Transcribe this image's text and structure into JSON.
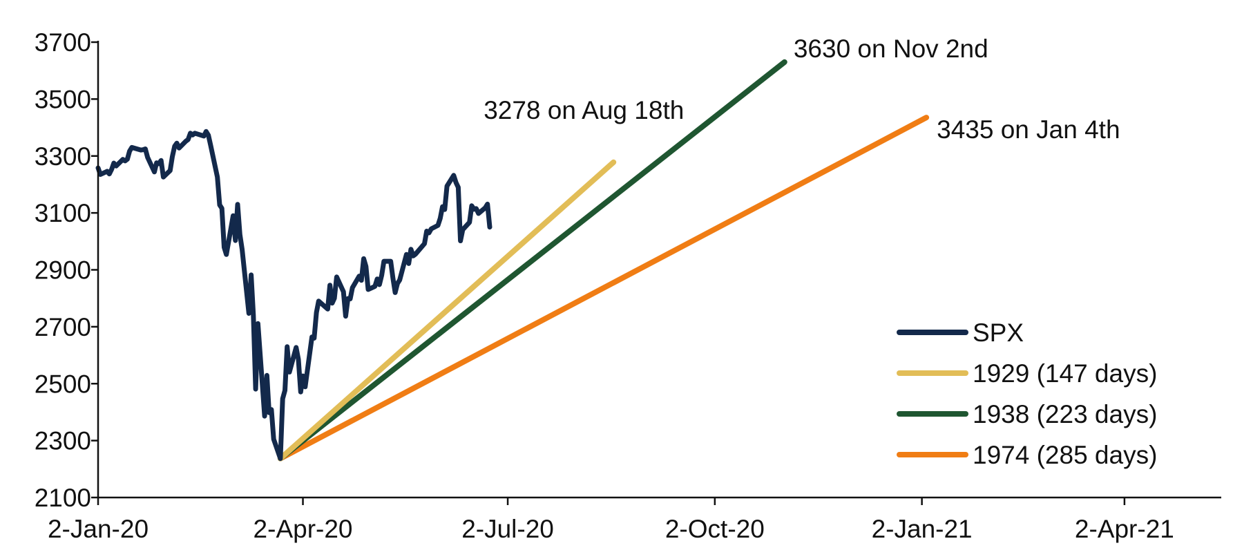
{
  "chart_data": {
    "type": "line",
    "title": "",
    "xlabel": "",
    "ylabel": "",
    "ylim": [
      2100,
      3700
    ],
    "xlim": [
      "2020-01-02",
      "2021-05-15"
    ],
    "y_ticks": [
      3700,
      3500,
      3300,
      3100,
      2900,
      2700,
      2500,
      2300,
      2100
    ],
    "x_ticks": [
      {
        "date": "2020-01-02",
        "label": "2-Jan-20"
      },
      {
        "date": "2020-04-02",
        "label": "2-Apr-20"
      },
      {
        "date": "2020-07-02",
        "label": "2-Jul-20"
      },
      {
        "date": "2020-10-02",
        "label": "2-Oct-20"
      },
      {
        "date": "2021-01-02",
        "label": "2-Jan-21"
      },
      {
        "date": "2021-04-02",
        "label": "2-Apr-21"
      }
    ],
    "grid": false,
    "legend_position": "bottom-right",
    "series": [
      {
        "name": "SPX",
        "color": "#13294b",
        "points": [
          [
            "2020-01-02",
            3258
          ],
          [
            "2020-01-03",
            3235
          ],
          [
            "2020-01-06",
            3246
          ],
          [
            "2020-01-07",
            3237
          ],
          [
            "2020-01-08",
            3253
          ],
          [
            "2020-01-09",
            3275
          ],
          [
            "2020-01-10",
            3265
          ],
          [
            "2020-01-13",
            3288
          ],
          [
            "2020-01-14",
            3283
          ],
          [
            "2020-01-15",
            3289
          ],
          [
            "2020-01-16",
            3317
          ],
          [
            "2020-01-17",
            3330
          ],
          [
            "2020-01-21",
            3321
          ],
          [
            "2020-01-22",
            3322
          ],
          [
            "2020-01-23",
            3325
          ],
          [
            "2020-01-24",
            3295
          ],
          [
            "2020-01-27",
            3244
          ],
          [
            "2020-01-28",
            3276
          ],
          [
            "2020-01-29",
            3273
          ],
          [
            "2020-01-30",
            3284
          ],
          [
            "2020-01-31",
            3226
          ],
          [
            "2020-02-03",
            3249
          ],
          [
            "2020-02-04",
            3298
          ],
          [
            "2020-02-05",
            3334
          ],
          [
            "2020-02-06",
            3345
          ],
          [
            "2020-02-07",
            3328
          ],
          [
            "2020-02-10",
            3352
          ],
          [
            "2020-02-11",
            3358
          ],
          [
            "2020-02-12",
            3380
          ],
          [
            "2020-02-13",
            3374
          ],
          [
            "2020-02-14",
            3380
          ],
          [
            "2020-02-18",
            3370
          ],
          [
            "2020-02-19",
            3386
          ],
          [
            "2020-02-20",
            3373
          ],
          [
            "2020-02-21",
            3338
          ],
          [
            "2020-02-24",
            3226
          ],
          [
            "2020-02-25",
            3128
          ],
          [
            "2020-02-26",
            3116
          ],
          [
            "2020-02-27",
            2979
          ],
          [
            "2020-02-28",
            2954
          ],
          [
            "2020-03-02",
            3090
          ],
          [
            "2020-03-03",
            3003
          ],
          [
            "2020-03-04",
            3130
          ],
          [
            "2020-03-05",
            3024
          ],
          [
            "2020-03-06",
            2972
          ],
          [
            "2020-03-09",
            2747
          ],
          [
            "2020-03-10",
            2882
          ],
          [
            "2020-03-11",
            2741
          ],
          [
            "2020-03-12",
            2481
          ],
          [
            "2020-03-13",
            2711
          ],
          [
            "2020-03-16",
            2386
          ],
          [
            "2020-03-17",
            2529
          ],
          [
            "2020-03-18",
            2398
          ],
          [
            "2020-03-19",
            2409
          ],
          [
            "2020-03-20",
            2305
          ],
          [
            "2020-03-23",
            2237
          ],
          [
            "2020-03-24",
            2447
          ],
          [
            "2020-03-25",
            2476
          ],
          [
            "2020-03-26",
            2630
          ],
          [
            "2020-03-27",
            2541
          ],
          [
            "2020-03-30",
            2627
          ],
          [
            "2020-03-31",
            2585
          ],
          [
            "2020-04-01",
            2471
          ],
          [
            "2020-04-02",
            2527
          ],
          [
            "2020-04-03",
            2489
          ],
          [
            "2020-04-06",
            2664
          ],
          [
            "2020-04-07",
            2660
          ],
          [
            "2020-04-08",
            2750
          ],
          [
            "2020-04-09",
            2790
          ],
          [
            "2020-04-13",
            2762
          ],
          [
            "2020-04-14",
            2846
          ],
          [
            "2020-04-15",
            2783
          ],
          [
            "2020-04-16",
            2800
          ],
          [
            "2020-04-17",
            2875
          ],
          [
            "2020-04-20",
            2823
          ],
          [
            "2020-04-21",
            2737
          ],
          [
            "2020-04-22",
            2799
          ],
          [
            "2020-04-23",
            2798
          ],
          [
            "2020-04-24",
            2837
          ],
          [
            "2020-04-27",
            2878
          ],
          [
            "2020-04-28",
            2863
          ],
          [
            "2020-04-29",
            2939
          ],
          [
            "2020-04-30",
            2912
          ],
          [
            "2020-05-01",
            2831
          ],
          [
            "2020-05-04",
            2842
          ],
          [
            "2020-05-05",
            2868
          ],
          [
            "2020-05-06",
            2848
          ],
          [
            "2020-05-07",
            2881
          ],
          [
            "2020-05-08",
            2930
          ],
          [
            "2020-05-11",
            2930
          ],
          [
            "2020-05-12",
            2870
          ],
          [
            "2020-05-13",
            2820
          ],
          [
            "2020-05-14",
            2852
          ],
          [
            "2020-05-15",
            2864
          ],
          [
            "2020-05-18",
            2954
          ],
          [
            "2020-05-19",
            2922
          ],
          [
            "2020-05-20",
            2972
          ],
          [
            "2020-05-21",
            2949
          ],
          [
            "2020-05-22",
            2955
          ],
          [
            "2020-05-26",
            2992
          ],
          [
            "2020-05-27",
            3036
          ],
          [
            "2020-05-28",
            3030
          ],
          [
            "2020-05-29",
            3044
          ],
          [
            "2020-06-01",
            3056
          ],
          [
            "2020-06-02",
            3081
          ],
          [
            "2020-06-03",
            3122
          ],
          [
            "2020-06-04",
            3112
          ],
          [
            "2020-06-05",
            3194
          ],
          [
            "2020-06-08",
            3232
          ],
          [
            "2020-06-09",
            3207
          ],
          [
            "2020-06-10",
            3190
          ],
          [
            "2020-06-11",
            3002
          ],
          [
            "2020-06-12",
            3041
          ],
          [
            "2020-06-15",
            3067
          ],
          [
            "2020-06-16",
            3125
          ],
          [
            "2020-06-17",
            3113
          ],
          [
            "2020-06-18",
            3115
          ],
          [
            "2020-06-19",
            3098
          ],
          [
            "2020-06-22",
            3118
          ],
          [
            "2020-06-23",
            3131
          ],
          [
            "2020-06-24",
            3050
          ]
        ]
      },
      {
        "name": "1929 (147 days)",
        "color": "#e2bd57",
        "points": [
          [
            "2020-03-23",
            2237
          ],
          [
            "2020-08-18",
            3278
          ]
        ]
      },
      {
        "name": "1938 (223 days)",
        "color": "#1f5631",
        "points": [
          [
            "2020-03-23",
            2237
          ],
          [
            "2020-11-02",
            3630
          ]
        ]
      },
      {
        "name": "1974 (285 days)",
        "color": "#f07d14",
        "points": [
          [
            "2020-03-23",
            2237
          ],
          [
            "2021-01-04",
            3435
          ]
        ]
      }
    ],
    "annotations": [
      {
        "text": "3278 on Aug 18th"
      },
      {
        "text": "3630 on Nov 2nd"
      },
      {
        "text": "3435 on Jan 4th"
      }
    ]
  }
}
